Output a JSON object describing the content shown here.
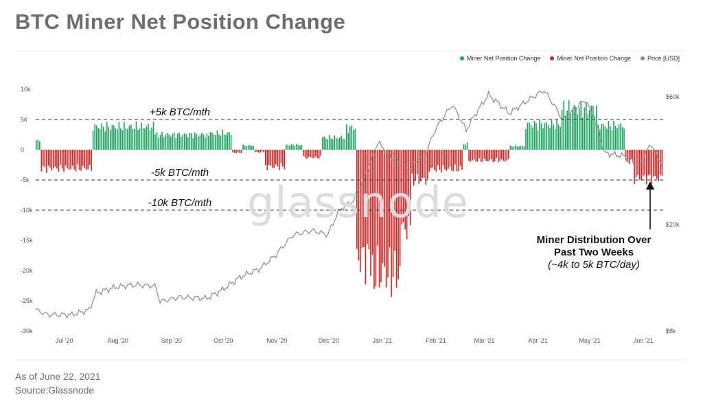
{
  "title": "BTC Miner Net Position Change",
  "footer": {
    "as_of": "As of June 22, 2021",
    "source": "Source:Glassnode"
  },
  "watermark": "glassnode",
  "legend": [
    {
      "label": "Miner Net Position Change",
      "color": "#1aa55f"
    },
    {
      "label": "Miner Net Position Change",
      "color": "#e0201e"
    },
    {
      "label": "Price [USD]",
      "color": "#8c8c8c"
    }
  ],
  "annotation": {
    "line1": "Miner Distribution Over",
    "line2": "Past Two Weeks",
    "line3": "(~4k to 5k BTC/day)"
  },
  "chart_data": {
    "type": "bar",
    "x_range": [
      "2020-06-24",
      "2021-06-22"
    ],
    "x_ticks": [
      "Jul '20",
      "Aug '20",
      "Sep '20",
      "Oct '20",
      "Nov '20",
      "Dec '20",
      "Jan '21",
      "Feb '21",
      "Mar '21",
      "Apr '21",
      "May '21",
      "Jun '21"
    ],
    "y_left": {
      "ticks": [
        "10k",
        "5k",
        "0",
        "-5k",
        "-10k",
        "-15k",
        "-20k",
        "-25k",
        "-30k"
      ],
      "range": [
        -30000,
        10000
      ]
    },
    "y_right": {
      "ticks": [
        "$60k",
        "$20k",
        "$8k"
      ],
      "scale": "log"
    },
    "reference_lines": [
      {
        "value": 5000,
        "label": "+5k BTC/mth"
      },
      {
        "value": -5000,
        "label": "-5k BTC/mth"
      },
      {
        "value": -10000,
        "label": "-10k BTC/mth"
      }
    ],
    "positive_color": "#1aa55f",
    "negative_color": "#e0201e",
    "price_color": "#8c8c8c",
    "net_position_segments": [
      {
        "start": "2020-06-24",
        "end": "2020-06-26",
        "value": 1500
      },
      {
        "start": "2020-06-27",
        "end": "2020-07-26",
        "value": -3100
      },
      {
        "start": "2020-07-27",
        "end": "2020-08-31",
        "value": 3800
      },
      {
        "start": "2020-09-01",
        "end": "2020-09-30",
        "value": 2500
      },
      {
        "start": "2020-10-01",
        "end": "2020-10-15",
        "value": 2700
      },
      {
        "start": "2020-10-16",
        "end": "2020-10-21",
        "value": -500
      },
      {
        "start": "2020-10-22",
        "end": "2020-10-28",
        "value": 700
      },
      {
        "start": "2020-10-29",
        "end": "2020-11-03",
        "value": -400
      },
      {
        "start": "2020-11-04",
        "end": "2020-11-15",
        "value": -2800
      },
      {
        "start": "2020-11-16",
        "end": "2020-11-25",
        "value": 800
      },
      {
        "start": "2020-11-26",
        "end": "2020-12-06",
        "value": -1300
      },
      {
        "start": "2020-12-07",
        "end": "2020-12-20",
        "value": 2000
      },
      {
        "start": "2020-12-21",
        "end": "2020-12-26",
        "value": 3600
      },
      {
        "start": "2020-12-27",
        "end": "2021-01-05",
        "value": -18000
      },
      {
        "start": "2021-01-06",
        "end": "2021-01-21",
        "value": -20500
      },
      {
        "start": "2021-01-22",
        "end": "2021-01-27",
        "value": -13000
      },
      {
        "start": "2021-01-28",
        "end": "2021-02-06",
        "value": -5000
      },
      {
        "start": "2021-02-07",
        "end": "2021-02-26",
        "value": -3200
      },
      {
        "start": "2021-02-27",
        "end": "2021-03-01",
        "value": 1000
      },
      {
        "start": "2021-03-02",
        "end": "2021-03-25",
        "value": -1800
      },
      {
        "start": "2021-03-26",
        "end": "2021-04-03",
        "value": 600
      },
      {
        "start": "2021-04-04",
        "end": "2021-04-24",
        "value": 4200
      },
      {
        "start": "2021-04-25",
        "end": "2021-05-15",
        "value": 6800
      },
      {
        "start": "2021-05-16",
        "end": "2021-05-31",
        "value": 4000
      },
      {
        "start": "2021-06-01",
        "end": "2021-06-05",
        "value": -2000
      },
      {
        "start": "2021-06-06",
        "end": "2021-06-22",
        "value": -4700
      }
    ],
    "price_usd": [
      [
        "2020-06-24",
        9600
      ],
      [
        "2020-07-01",
        9200
      ],
      [
        "2020-07-15",
        9200
      ],
      [
        "2020-07-25",
        9600
      ],
      [
        "2020-07-29",
        11100
      ],
      [
        "2020-08-10",
        11700
      ],
      [
        "2020-08-20",
        11900
      ],
      [
        "2020-09-01",
        11800
      ],
      [
        "2020-09-04",
        10300
      ],
      [
        "2020-09-15",
        10700
      ],
      [
        "2020-10-01",
        10600
      ],
      [
        "2020-10-10",
        11400
      ],
      [
        "2020-10-21",
        12800
      ],
      [
        "2020-11-01",
        13700
      ],
      [
        "2020-11-10",
        15400
      ],
      [
        "2020-11-20",
        18300
      ],
      [
        "2020-12-01",
        19000
      ],
      [
        "2020-12-10",
        18300
      ],
      [
        "2020-12-17",
        22800
      ],
      [
        "2020-12-25",
        24500
      ],
      [
        "2021-01-03",
        33000
      ],
      [
        "2021-01-08",
        40500
      ],
      [
        "2021-01-15",
        36000
      ],
      [
        "2021-01-25",
        32000
      ],
      [
        "2021-02-05",
        37000
      ],
      [
        "2021-02-10",
        45000
      ],
      [
        "2021-02-20",
        56000
      ],
      [
        "2021-02-28",
        45000
      ],
      [
        "2021-03-13",
        61000
      ],
      [
        "2021-03-25",
        52000
      ],
      [
        "2021-04-14",
        63500
      ],
      [
        "2021-04-25",
        49000
      ],
      [
        "2021-05-08",
        58500
      ],
      [
        "2021-05-13",
        49500
      ],
      [
        "2021-05-19",
        37000
      ],
      [
        "2021-05-31",
        36000
      ],
      [
        "2021-06-08",
        33000
      ],
      [
        "2021-06-15",
        40000
      ],
      [
        "2021-06-22",
        32500
      ]
    ]
  }
}
